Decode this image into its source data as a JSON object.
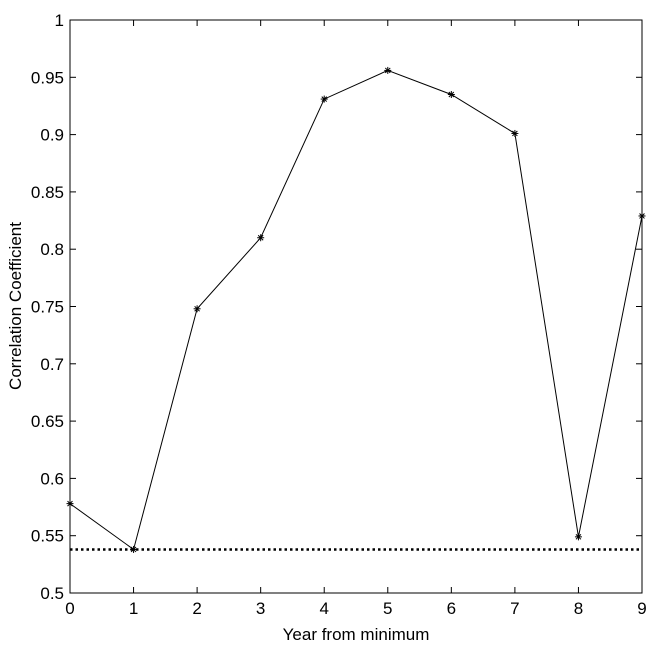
{
  "chart_data": {
    "type": "line",
    "title": "",
    "xlabel": "Year from minimum",
    "ylabel": "Correlation Coefficient",
    "xlim": [
      0,
      9
    ],
    "ylim": [
      0.5,
      1
    ],
    "grid": false,
    "x_ticks": [
      0,
      1,
      2,
      3,
      4,
      5,
      6,
      7,
      8,
      9
    ],
    "x_tick_labels": [
      "0",
      "1",
      "2",
      "3",
      "4",
      "5",
      "6",
      "7",
      "8",
      "9"
    ],
    "y_ticks": [
      0.5,
      0.55,
      0.6,
      0.65,
      0.7,
      0.75,
      0.8,
      0.85,
      0.9,
      0.95,
      1
    ],
    "y_tick_labels": [
      "0.5",
      "0.55",
      "0.6",
      "0.65",
      "0.7",
      "0.75",
      "0.8",
      "0.85",
      "0.9",
      "0.95",
      "1"
    ],
    "series": [
      {
        "style": "solid-line-with-star-markers",
        "color": "#000000",
        "x": [
          0,
          1,
          2,
          3,
          4,
          5,
          6,
          7,
          8,
          9
        ],
        "y": [
          0.578,
          0.538,
          0.748,
          0.81,
          0.931,
          0.956,
          0.935,
          0.901,
          0.549,
          0.829
        ]
      }
    ],
    "reference_lines": [
      {
        "orientation": "horizontal",
        "y": 0.538,
        "style": "dotted",
        "color": "#000000"
      }
    ]
  }
}
